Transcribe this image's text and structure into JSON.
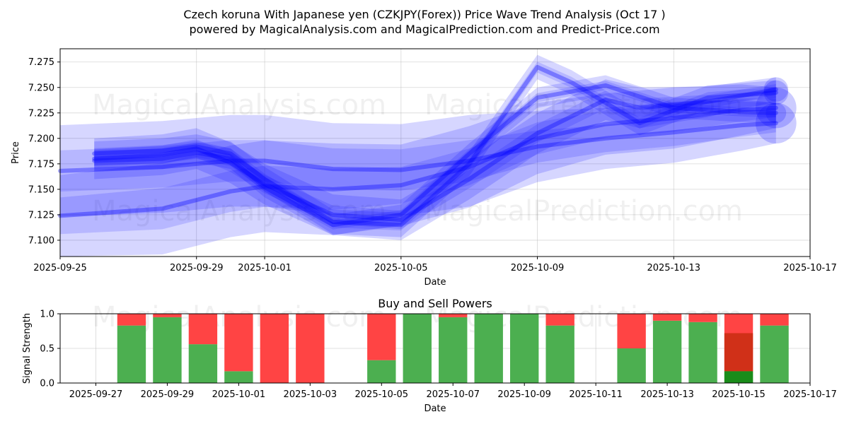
{
  "figure": {
    "title_line1": "Czech koruna With Japanese yen (CZKJPY(Forex)) Price Wave Trend Analysis (Oct 17 )",
    "title_line2": "powered by MagicalAnalysis.com and MagicalPrediction.com and Predict-Price.com",
    "watermarks": [
      "MagicalAnalysis.com",
      "MagicalPrediction.com"
    ]
  },
  "chart_data": [
    {
      "type": "area",
      "title": "",
      "xlabel": "Date",
      "ylabel": "Price",
      "xlim": [
        "2025-09-25",
        "2025-10-17"
      ],
      "ylim": [
        7.084,
        7.288
      ],
      "x_ticks": [
        "2025-09-25",
        "2025-09-29",
        "2025-10-01",
        "2025-10-05",
        "2025-10-09",
        "2025-10-13",
        "2025-10-17"
      ],
      "y_ticks": [
        7.1,
        7.125,
        7.15,
        7.175,
        7.2,
        7.225,
        7.25,
        7.275
      ],
      "grid": true,
      "color": "#0000ff",
      "series": [
        {
          "x": [
            "2025-09-25",
            "2025-09-28",
            "2025-09-30",
            "2025-10-01",
            "2025-10-03",
            "2025-10-05",
            "2025-10-07",
            "2025-10-09",
            "2025-10-11",
            "2025-10-13",
            "2025-10-15",
            "2025-10-16"
          ],
          "y": [
            7.168,
            7.172,
            7.178,
            7.178,
            7.17,
            7.169,
            7.178,
            7.192,
            7.2,
            7.206,
            7.213,
            7.215
          ],
          "band": [
            0.045,
            0.045,
            0.045,
            0.045,
            0.045,
            0.045,
            0.045,
            0.035,
            0.03,
            0.03,
            0.025,
            0.02
          ]
        },
        {
          "x": [
            "2025-09-25",
            "2025-09-28",
            "2025-09-30",
            "2025-10-01",
            "2025-10-03",
            "2025-10-05",
            "2025-10-07",
            "2025-10-09",
            "2025-10-11",
            "2025-10-13",
            "2025-10-15",
            "2025-10-16"
          ],
          "y": [
            7.124,
            7.131,
            7.148,
            7.153,
            7.15,
            7.154,
            7.172,
            7.2,
            7.214,
            7.22,
            7.228,
            7.23
          ],
          "band": [
            0.04,
            0.045,
            0.045,
            0.045,
            0.045,
            0.04,
            0.04,
            0.035,
            0.03,
            0.03,
            0.025,
            0.02
          ]
        },
        {
          "x": [
            "2025-09-26",
            "2025-09-28",
            "2025-09-29",
            "2025-09-30",
            "2025-10-01",
            "2025-10-03",
            "2025-10-05",
            "2025-10-07",
            "2025-10-09",
            "2025-10-11",
            "2025-10-12",
            "2025-10-14",
            "2025-10-16"
          ],
          "y": [
            7.18,
            7.184,
            7.19,
            7.176,
            7.155,
            7.125,
            7.12,
            7.16,
            7.205,
            7.238,
            7.23,
            7.236,
            7.248
          ],
          "band": [
            0.02,
            0.02,
            0.02,
            0.02,
            0.02,
            0.02,
            0.02,
            0.02,
            0.02,
            0.02,
            0.02,
            0.015,
            0.012
          ]
        },
        {
          "x": [
            "2025-09-26",
            "2025-09-28",
            "2025-09-29",
            "2025-09-30",
            "2025-10-01",
            "2025-10-03",
            "2025-10-05",
            "2025-10-07",
            "2025-10-09",
            "2025-10-10",
            "2025-10-12",
            "2025-10-14",
            "2025-10-16"
          ],
          "y": [
            7.185,
            7.188,
            7.192,
            7.185,
            7.16,
            7.118,
            7.115,
            7.175,
            7.27,
            7.255,
            7.215,
            7.24,
            7.245
          ],
          "band": [
            0.012,
            0.012,
            0.012,
            0.012,
            0.012,
            0.012,
            0.012,
            0.012,
            0.012,
            0.012,
            0.012,
            0.012,
            0.012
          ]
        },
        {
          "x": [
            "2025-09-26",
            "2025-09-28",
            "2025-09-29",
            "2025-09-30",
            "2025-10-01",
            "2025-10-03",
            "2025-10-05",
            "2025-10-07",
            "2025-10-09",
            "2025-10-11",
            "2025-10-13",
            "2025-10-15",
            "2025-10-16"
          ],
          "y": [
            7.178,
            7.18,
            7.186,
            7.18,
            7.152,
            7.115,
            7.125,
            7.185,
            7.24,
            7.252,
            7.23,
            7.226,
            7.225
          ],
          "band": [
            0.01,
            0.01,
            0.01,
            0.01,
            0.01,
            0.01,
            0.01,
            0.01,
            0.01,
            0.01,
            0.01,
            0.01,
            0.01
          ]
        }
      ]
    },
    {
      "type": "bar",
      "title": "Buy and Sell Powers",
      "xlabel": "Date",
      "ylabel": "Signal Strength",
      "xlim": [
        "2025-09-26",
        "2025-10-17"
      ],
      "ylim": [
        0,
        1
      ],
      "x_ticks": [
        "2025-09-27",
        "2025-09-29",
        "2025-10-01",
        "2025-10-03",
        "2025-10-05",
        "2025-10-07",
        "2025-10-09",
        "2025-10-11",
        "2025-10-13",
        "2025-10-15",
        "2025-10-17"
      ],
      "y_ticks": [
        "0.0",
        "0.5",
        "1.0"
      ],
      "grid": true,
      "colors": {
        "buy": "#4caf50",
        "sell": "#ff4444",
        "buy_strong": "#1a8c1a",
        "sell_strong": "#d03018"
      },
      "bars": [
        {
          "date": "2025-09-28",
          "buy": 0.83,
          "sell": 0.17
        },
        {
          "date": "2025-09-29",
          "buy": 0.95,
          "sell": 0.05
        },
        {
          "date": "2025-09-30",
          "buy": 0.56,
          "sell": 0.44
        },
        {
          "date": "2025-10-01",
          "buy": 0.17,
          "sell": 0.83
        },
        {
          "date": "2025-10-02",
          "buy": 0.0,
          "sell": 1.0
        },
        {
          "date": "2025-10-03",
          "buy": 0.0,
          "sell": 1.0
        },
        {
          "date": "2025-10-05",
          "buy": 0.33,
          "sell": 0.67
        },
        {
          "date": "2025-10-06",
          "buy": 1.0,
          "sell": 0.0
        },
        {
          "date": "2025-10-07",
          "buy": 0.95,
          "sell": 0.05
        },
        {
          "date": "2025-10-08",
          "buy": 1.0,
          "sell": 0.0
        },
        {
          "date": "2025-10-09",
          "buy": 1.0,
          "sell": 0.0
        },
        {
          "date": "2025-10-10",
          "buy": 0.83,
          "sell": 0.17
        },
        {
          "date": "2025-10-12",
          "buy": 0.5,
          "sell": 0.5
        },
        {
          "date": "2025-10-13",
          "buy": 0.9,
          "sell": 0.1
        },
        {
          "date": "2025-10-14",
          "buy": 0.88,
          "sell": 0.12
        },
        {
          "date": "2025-10-15",
          "buy": 0.17,
          "sell": 0.83,
          "strong_split": 0.72
        },
        {
          "date": "2025-10-16",
          "buy": 0.83,
          "sell": 0.17
        }
      ]
    }
  ]
}
